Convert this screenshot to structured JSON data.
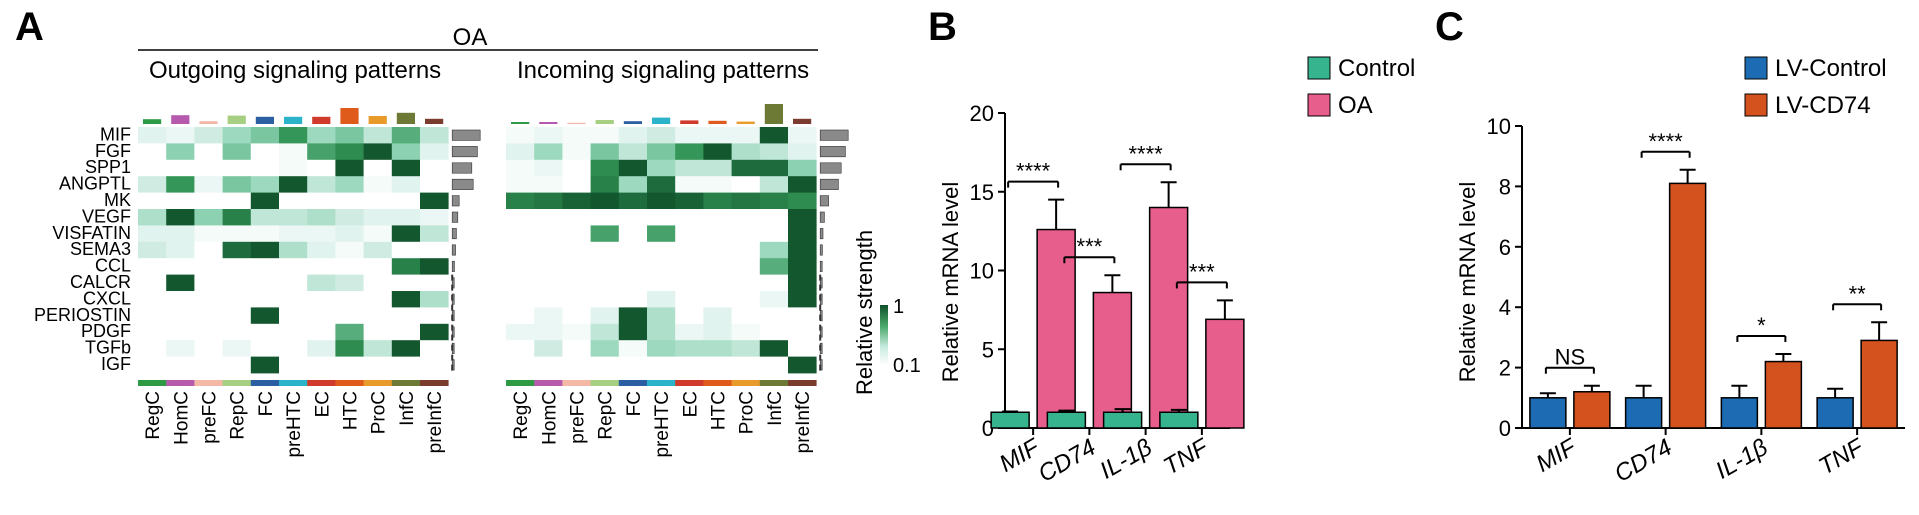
{
  "panels": {
    "a": "A",
    "b": "B",
    "c": "C"
  },
  "chart_data": [
    {
      "type": "heatmap",
      "panel": "A",
      "group_label": "OA",
      "rows": [
        "MIF",
        "FGF",
        "SPP1",
        "ANGPTL",
        "MK",
        "VEGF",
        "VISFATIN",
        "SEMA3",
        "CCL",
        "CALCR",
        "CXCL",
        "PERIOSTIN",
        "PDGF",
        "TGFb",
        "IGF"
      ],
      "columns": [
        "RegC",
        "HomC",
        "preFC",
        "RepC",
        "FC",
        "preHTC",
        "EC",
        "HTC",
        "ProC",
        "InfC",
        "preInfC"
      ],
      "column_colors": [
        "#2E9A44",
        "#B65AAE",
        "#F3B9A6",
        "#A7CF82",
        "#2C5FA2",
        "#2BB3C9",
        "#CF3A2B",
        "#DE5B1C",
        "#E89A2B",
        "#6C7A36",
        "#7B3B2E"
      ],
      "colorbar": {
        "label": "Relative strength",
        "max_label": "1",
        "min_label": "0.1",
        "colors": [
          "#ffffff",
          "#c9ebe0",
          "#49a86a",
          "#0f4f2b"
        ]
      },
      "heatmaps": [
        {
          "title": "Outgoing signaling patterns",
          "values": [
            [
              0.15,
              0.1,
              0.2,
              0.35,
              0.45,
              0.65,
              0.35,
              0.45,
              0.25,
              0.55,
              0.25
            ],
            [
              0,
              0.4,
              0,
              0.45,
              0,
              0.05,
              0.6,
              0.7,
              0.95,
              0.4,
              0.15
            ],
            [
              0,
              0,
              0,
              0,
              0,
              0.05,
              0,
              0.95,
              0,
              0.95,
              0
            ],
            [
              0.2,
              0.65,
              0.1,
              0.45,
              0.35,
              0.95,
              0.25,
              0.35,
              0.05,
              0.15,
              0
            ],
            [
              0,
              0,
              0,
              0,
              0.95,
              0,
              0,
              0,
              0,
              0,
              0.95
            ],
            [
              0.3,
              0.95,
              0.4,
              0.75,
              0.25,
              0.25,
              0.3,
              0.2,
              0.15,
              0.15,
              0.1
            ],
            [
              0.15,
              0.15,
              0.05,
              0.05,
              0.05,
              0.1,
              0.1,
              0.15,
              0.05,
              0.95,
              0.25
            ],
            [
              0.2,
              0.15,
              0,
              0.85,
              0.95,
              0.3,
              0.15,
              0.05,
              0.2,
              0,
              0
            ],
            [
              0,
              0,
              0,
              0,
              0,
              0,
              0,
              0,
              0,
              0.75,
              0.95
            ],
            [
              0,
              0.95,
              0,
              0,
              0,
              0,
              0.25,
              0.2,
              0,
              0,
              0
            ],
            [
              0,
              0,
              0,
              0,
              0,
              0,
              0,
              0,
              0,
              0.95,
              0.3
            ],
            [
              0,
              0,
              0,
              0,
              0.95,
              0,
              0,
              0,
              0,
              0,
              0
            ],
            [
              0,
              0,
              0,
              0,
              0,
              0,
              0,
              0.55,
              0,
              0,
              0.95
            ],
            [
              0,
              0.1,
              0,
              0.1,
              0,
              0,
              0.15,
              0.7,
              0.25,
              0.95,
              0
            ],
            [
              0,
              0,
              0,
              0,
              0.95,
              0,
              0,
              0,
              0,
              0,
              0
            ]
          ],
          "top_bars": [
            0.12,
            0.22,
            0.07,
            0.21,
            0.18,
            0.18,
            0.18,
            0.4,
            0.2,
            0.28,
            0.13
          ],
          "side_bars": [
            1,
            0.9,
            0.7,
            0.75,
            0.25,
            0.2,
            0.15,
            0.12,
            0.08,
            0.05,
            0.05,
            0.04,
            0.03,
            0.03,
            0.02
          ]
        },
        {
          "title": "Incoming signaling patterns",
          "values": [
            [
              0.05,
              0.1,
              0.05,
              0.05,
              0.15,
              0.2,
              0.1,
              0.1,
              0.1,
              0.95,
              0.1
            ],
            [
              0.15,
              0.35,
              0.05,
              0.45,
              0.25,
              0.45,
              0.65,
              0.95,
              0.3,
              0.25,
              0.15
            ],
            [
              0.05,
              0.1,
              0,
              0.7,
              0.95,
              0.35,
              0.25,
              0.25,
              0.85,
              0.85,
              0.4
            ],
            [
              0.05,
              0.05,
              0,
              0.75,
              0.35,
              0.85,
              0.05,
              0.05,
              0,
              0.25,
              0.95
            ],
            [
              0.75,
              0.8,
              0.9,
              0.95,
              0.85,
              0.95,
              0.9,
              0.75,
              0.8,
              0.75,
              0.7
            ],
            [
              0,
              0,
              0,
              0,
              0,
              0,
              0,
              0,
              0,
              0,
              0.95
            ],
            [
              0,
              0,
              0,
              0.6,
              0,
              0.6,
              0,
              0,
              0,
              0,
              0.95
            ],
            [
              0,
              0,
              0,
              0,
              0,
              0,
              0,
              0,
              0,
              0.35,
              0.95
            ],
            [
              0,
              0,
              0,
              0,
              0,
              0,
              0,
              0,
              0,
              0.55,
              0.95
            ],
            [
              0,
              0,
              0,
              0,
              0,
              0,
              0,
              0,
              0,
              0,
              0.95
            ],
            [
              0,
              0,
              0,
              0,
              0,
              0.15,
              0,
              0,
              0,
              0.1,
              0.95
            ],
            [
              0,
              0.1,
              0,
              0.15,
              0.95,
              0.3,
              0,
              0.15,
              0,
              0,
              0
            ],
            [
              0.1,
              0.1,
              0.05,
              0.25,
              0.95,
              0.3,
              0.1,
              0.15,
              0.05,
              0,
              0
            ],
            [
              0,
              0.2,
              0,
              0.35,
              0.05,
              0.35,
              0.3,
              0.3,
              0.25,
              0.95,
              0
            ],
            [
              0,
              0,
              0,
              0,
              0,
              0,
              0,
              0,
              0,
              0,
              0.95
            ]
          ],
          "top_bars": [
            0.05,
            0.05,
            0.03,
            0.1,
            0.07,
            0.16,
            0.09,
            0.08,
            0.06,
            0.5,
            0.13
          ],
          "side_bars": [
            1,
            0.9,
            0.75,
            0.65,
            0.3,
            0.15,
            0.1,
            0.08,
            0.07,
            0.05,
            0.05,
            0.04,
            0.03,
            0.03,
            0.02
          ]
        }
      ]
    },
    {
      "type": "bar",
      "panel": "B",
      "categories": [
        "MIF",
        "CD74",
        "IL-1β",
        "TNF"
      ],
      "ylabel": "Relative mRNA level",
      "ylim": [
        0,
        20
      ],
      "yticks": [
        0,
        5,
        10,
        15,
        20
      ],
      "legend_position": "top-right",
      "series": [
        {
          "name": "Control",
          "color": "#36B48E",
          "values": [
            1.0,
            1.0,
            1.0,
            1.0
          ],
          "errors": [
            0.05,
            0.1,
            0.2,
            0.15
          ]
        },
        {
          "name": "OA",
          "color": "#E75D8B",
          "values": [
            12.6,
            8.6,
            14.0,
            6.9
          ],
          "errors": [
            1.9,
            1.1,
            1.6,
            1.2
          ]
        }
      ],
      "significance": [
        "****",
        "***",
        "****",
        "***"
      ]
    },
    {
      "type": "bar",
      "panel": "C",
      "categories": [
        "MIF",
        "CD74",
        "IL-1β",
        "TNF"
      ],
      "ylabel": "Relative mRNA level",
      "ylim": [
        0,
        10
      ],
      "yticks": [
        0,
        2,
        4,
        6,
        8,
        10
      ],
      "legend_position": "top-right",
      "series": [
        {
          "name": "LV-Control",
          "color": "#1D6BB3",
          "values": [
            1.0,
            1.0,
            1.0,
            1.0
          ],
          "errors": [
            0.15,
            0.4,
            0.4,
            0.3
          ]
        },
        {
          "name": "LV-CD74",
          "color": "#D4521E",
          "values": [
            1.2,
            8.1,
            2.2,
            2.9
          ],
          "errors": [
            0.2,
            0.45,
            0.25,
            0.6
          ]
        }
      ],
      "significance": [
        "NS",
        "****",
        "*",
        "**"
      ]
    }
  ]
}
